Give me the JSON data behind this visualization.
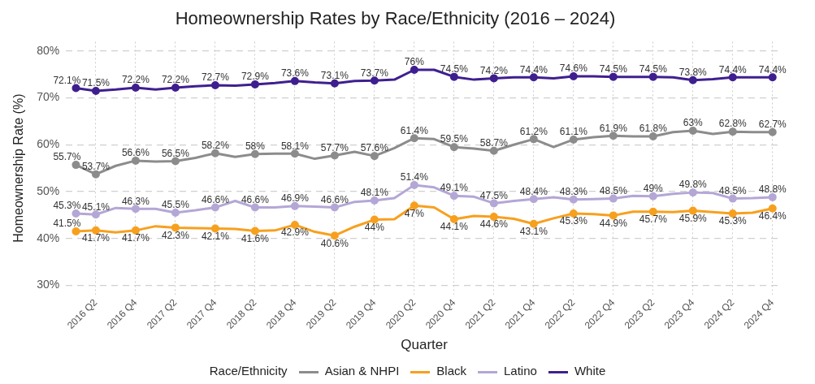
{
  "chart_data": {
    "type": "line",
    "title": "Homeownership Rates by Race/Ethnicity (2016 – 2024)",
    "xlabel": "Quarter",
    "ylabel": "Homeownership Rate (%)",
    "legend_title": "Race/Ethnicity",
    "categories": [
      null,
      "2016 Q2",
      null,
      "2016 Q4",
      null,
      "2017 Q2",
      null,
      "2017 Q4",
      null,
      "2018 Q2",
      null,
      "2018 Q4",
      null,
      "2019 Q2",
      null,
      "2019 Q4",
      null,
      "2020 Q2",
      null,
      "2020 Q4",
      null,
      "2021 Q2",
      null,
      "2021 Q4",
      null,
      "2022 Q2",
      null,
      "2022 Q4",
      null,
      "2023 Q2",
      null,
      "2023 Q4",
      null,
      "2024 Q2",
      null,
      "2024 Q4"
    ],
    "series": [
      {
        "name": "Asian & NHPI",
        "color": "#8c8c8c",
        "values": [
          55.7,
          53.7,
          55.5,
          56.6,
          56.4,
          56.5,
          57.2,
          58.2,
          57.4,
          58,
          58.1,
          58.1,
          57,
          57.7,
          58.5,
          57.6,
          59.3,
          61.4,
          61.2,
          59.5,
          59.2,
          58.7,
          60,
          61.2,
          59.5,
          61.1,
          61.6,
          61.9,
          61.8,
          61.8,
          62.7,
          63,
          62.3,
          62.8,
          62.7,
          62.7
        ],
        "value_labels": [
          "55.7%",
          "53.7%",
          null,
          "56.6%",
          null,
          "56.5%",
          null,
          "58.2%",
          null,
          "58%",
          null,
          "58.1%",
          null,
          "57.7%",
          null,
          "57.6%",
          null,
          "61.4%",
          null,
          "59.5%",
          null,
          "58.7%",
          null,
          "61.2%",
          null,
          "61.1%",
          null,
          "61.9%",
          null,
          "61.8%",
          null,
          "63%",
          null,
          "62.8%",
          null,
          "62.7%"
        ]
      },
      {
        "name": "Black",
        "color": "#f7a01e",
        "values": [
          41.5,
          41.7,
          41.3,
          41.7,
          42.6,
          42.3,
          42.2,
          42.1,
          42,
          41.6,
          41.7,
          42.9,
          41.4,
          40.6,
          42.5,
          44,
          44.1,
          47,
          46.6,
          44.1,
          44.8,
          44.6,
          44.2,
          43.1,
          44.3,
          45.3,
          45.2,
          44.9,
          45.7,
          45.7,
          45.6,
          45.9,
          45.6,
          45.3,
          45.5,
          46.4
        ],
        "value_labels": [
          "41.5%",
          "41.7%",
          null,
          "41.7%",
          null,
          "42.3%",
          null,
          "42.1%",
          null,
          "41.6%",
          null,
          "42.9%",
          null,
          "40.6%",
          null,
          "44%",
          null,
          "47%",
          null,
          "44.1%",
          null,
          "44.6%",
          null,
          "43.1%",
          null,
          "45.3%",
          null,
          "44.9%",
          null,
          "45.7%",
          null,
          "45.9%",
          null,
          "45.3%",
          null,
          "46.4%"
        ]
      },
      {
        "name": "Latino",
        "color": "#b4a7d6",
        "values": [
          45.3,
          45.1,
          46.5,
          46.3,
          46.3,
          45.5,
          46,
          46.6,
          48,
          46.6,
          46.6,
          46.9,
          46.8,
          46.6,
          47.8,
          48.1,
          48.6,
          51.4,
          50.9,
          49.1,
          48.9,
          47.5,
          48,
          48.4,
          48.8,
          48.3,
          48.4,
          48.5,
          49.1,
          49,
          49.5,
          49.8,
          49.7,
          48.5,
          48.6,
          48.8
        ],
        "value_labels": [
          "45.3%",
          "45.1%",
          null,
          "46.3%",
          null,
          "45.5%",
          null,
          "46.6%",
          null,
          "46.6%",
          null,
          "46.9%",
          null,
          "46.6%",
          null,
          "48.1%",
          null,
          "51.4%",
          null,
          "49.1%",
          null,
          "47.5%",
          null,
          "48.4%",
          null,
          "48.3%",
          null,
          "48.5%",
          null,
          "49%",
          null,
          "49.8%",
          null,
          "48.5%",
          null,
          "48.8%"
        ]
      },
      {
        "name": "White",
        "color": "#3f1f8f",
        "values": [
          72.1,
          71.5,
          71.8,
          72.2,
          71.8,
          72.2,
          72.5,
          72.7,
          72.6,
          72.9,
          73.2,
          73.6,
          73.3,
          73.1,
          73.6,
          73.7,
          73.9,
          76,
          76,
          74.5,
          73.9,
          74.2,
          74.4,
          74.4,
          74.2,
          74.6,
          74.6,
          74.5,
          74.5,
          74.5,
          74.4,
          73.8,
          74,
          74.4,
          74.4,
          74.4
        ],
        "value_labels": [
          "72.1%",
          "71.5%",
          null,
          "72.2%",
          null,
          "72.2%",
          null,
          "72.7%",
          null,
          "72.9%",
          null,
          "73.6%",
          null,
          "73.1%",
          null,
          "73.7%",
          null,
          "76%",
          null,
          "74.5%",
          null,
          "74.2%",
          null,
          "74.4%",
          null,
          "74.6%",
          null,
          "74.5%",
          null,
          "74.5%",
          null,
          "73.8%",
          null,
          "74.4%",
          null,
          "74.4%"
        ]
      }
    ],
    "ylim": [
      28,
      82
    ],
    "yticks": [
      {
        "value": 30,
        "label": "30%"
      },
      {
        "value": 40,
        "label": "40%"
      },
      {
        "value": 50,
        "label": "50%"
      },
      {
        "value": 60,
        "label": "60%"
      },
      {
        "value": 70,
        "label": "70%"
      },
      {
        "value": 80,
        "label": "80%"
      }
    ],
    "grid": true,
    "legend": "bottom",
    "marker": "circle",
    "line_style": "solid"
  }
}
